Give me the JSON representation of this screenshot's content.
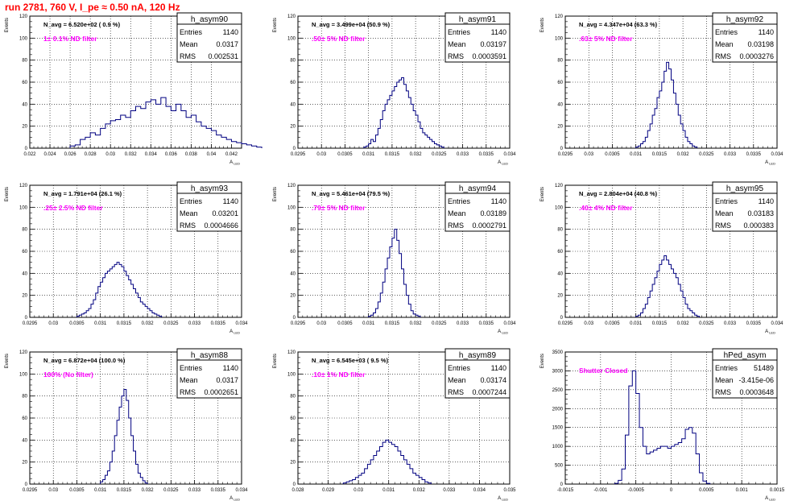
{
  "run_title": "run 2781,   760 V, I_pe ≈ 0.50 nA, 120 Hz",
  "colors": {
    "title": "#ff0000",
    "annotation": "#ff00ff",
    "histogram": "#000080",
    "grid": "#000000"
  },
  "chart_data": [
    {
      "type": "bar",
      "name": "h_asym90",
      "ylabel": "Events",
      "xlabel": "A_LED",
      "xlim": [
        0.022,
        0.043
      ],
      "ylim": [
        0,
        120
      ],
      "xticks": [
        0.022,
        0.024,
        0.026,
        0.028,
        0.03,
        0.032,
        0.034,
        0.036,
        0.038,
        0.04,
        0.042
      ],
      "xtick_labels": [
        "0.022",
        "0.024",
        "0.026",
        "0.028",
        "0.03",
        "0.032",
        "0.034",
        "0.036",
        "0.038",
        "0.04",
        "0.042"
      ],
      "yticks": [
        0,
        20,
        40,
        60,
        80,
        100,
        120
      ],
      "navg": "N_avg = 6.520e+02 ( 0.9 %)",
      "filter": "1± 0.1% ND filter",
      "stats": {
        "entries": "1140",
        "mean": "0.0317",
        "rms": "0.002531"
      },
      "hist": {
        "x0": 0.026,
        "width": 0.0005,
        "values": [
          2,
          3,
          8,
          10,
          14,
          12,
          18,
          22,
          25,
          26,
          30,
          28,
          34,
          38,
          36,
          42,
          44,
          40,
          46,
          38,
          34,
          40,
          34,
          28,
          30,
          24,
          20,
          18,
          16,
          12,
          10,
          8,
          6,
          5,
          4,
          3,
          2,
          1
        ]
      }
    },
    {
      "type": "bar",
      "name": "h_asym91",
      "ylabel": "Events",
      "xlabel": "A_LED",
      "xlim": [
        0.0295,
        0.034
      ],
      "ylim": [
        0,
        120
      ],
      "xticks": [
        0.0295,
        0.03,
        0.0305,
        0.031,
        0.0315,
        0.032,
        0.0325,
        0.033,
        0.0335,
        0.034
      ],
      "xtick_labels": [
        "0.0295",
        "0.03",
        "0.0305",
        "0.031",
        "0.0315",
        "0.032",
        "0.0325",
        "0.033",
        "0.0335",
        "0.034"
      ],
      "yticks": [
        0,
        20,
        40,
        60,
        80,
        100,
        120
      ],
      "navg": "N_avg = 3.499e+04 (50.9 %)",
      "filter": ".50± 5% ND filter",
      "stats": {
        "entries": "1140",
        "mean": "0.03197",
        "rms": "0.0003591"
      },
      "hist": {
        "x0": 0.0309,
        "width": 5e-05,
        "values": [
          1,
          2,
          4,
          8,
          6,
          12,
          18,
          26,
          34,
          40,
          44,
          48,
          52,
          56,
          60,
          62,
          64,
          58,
          52,
          46,
          40,
          34,
          30,
          24,
          18,
          14,
          12,
          10,
          8,
          6,
          4,
          3,
          2,
          1
        ]
      }
    },
    {
      "type": "bar",
      "name": "h_asym92",
      "ylabel": "Events",
      "xlabel": "A_LED",
      "xlim": [
        0.0295,
        0.034
      ],
      "ylim": [
        0,
        120
      ],
      "xticks": [
        0.0295,
        0.03,
        0.0305,
        0.031,
        0.0315,
        0.032,
        0.0325,
        0.033,
        0.0335,
        0.034
      ],
      "xtick_labels": [
        "0.0295",
        "0.03",
        "0.0305",
        "0.031",
        "0.0315",
        "0.032",
        "0.0325",
        "0.033",
        "0.0335",
        "0.034"
      ],
      "yticks": [
        0,
        20,
        40,
        60,
        80,
        100,
        120
      ],
      "navg": "N_avg = 4.347e+04 (63.3 %)",
      "filter": ".63± 5% ND filter",
      "stats": {
        "entries": "1140",
        "mean": "0.03198",
        "rms": "0.0003276"
      },
      "hist": {
        "x0": 0.031,
        "width": 5e-05,
        "values": [
          1,
          2,
          4,
          6,
          10,
          16,
          22,
          30,
          36,
          46,
          52,
          60,
          70,
          78,
          72,
          62,
          50,
          40,
          30,
          22,
          16,
          10,
          6,
          4,
          2,
          1
        ]
      }
    },
    {
      "type": "bar",
      "name": "h_asym93",
      "ylabel": "Events",
      "xlabel": "A_LED",
      "xlim": [
        0.0295,
        0.034
      ],
      "ylim": [
        0,
        120
      ],
      "xticks": [
        0.0295,
        0.03,
        0.0305,
        0.031,
        0.0315,
        0.032,
        0.0325,
        0.033,
        0.0335,
        0.034
      ],
      "xtick_labels": [
        "0.0295",
        "0.03",
        "0.0305",
        "0.031",
        "0.0315",
        "0.032",
        "0.0325",
        "0.033",
        "0.0335",
        "0.034"
      ],
      "yticks": [
        0,
        20,
        40,
        60,
        80,
        100,
        120
      ],
      "navg": "N_avg = 1.791e+04 (26.1 %)",
      "filter": ".25± 2.5% ND filter",
      "stats": {
        "entries": "1140",
        "mean": "0.03201",
        "rms": "0.0004666"
      },
      "hist": {
        "x0": 0.0305,
        "width": 5e-05,
        "values": [
          1,
          2,
          3,
          4,
          6,
          8,
          12,
          16,
          22,
          28,
          32,
          36,
          40,
          42,
          44,
          46,
          48,
          50,
          48,
          46,
          42,
          38,
          34,
          30,
          26,
          22,
          18,
          14,
          12,
          10,
          8,
          6,
          4,
          3,
          2,
          1
        ]
      }
    },
    {
      "type": "bar",
      "name": "h_asym94",
      "ylabel": "Events",
      "xlabel": "A_LED",
      "xlim": [
        0.0295,
        0.034
      ],
      "ylim": [
        0,
        120
      ],
      "xticks": [
        0.0295,
        0.03,
        0.0305,
        0.031,
        0.0315,
        0.032,
        0.0325,
        0.033,
        0.0335,
        0.034
      ],
      "xtick_labels": [
        "0.0295",
        "0.03",
        "0.0305",
        "0.031",
        "0.0315",
        "0.032",
        "0.0325",
        "0.033",
        "0.0335",
        "0.034"
      ],
      "yticks": [
        0,
        20,
        40,
        60,
        80,
        100,
        120
      ],
      "navg": "N_avg = 5.461e+04 (79.5 %)",
      "filter": ".79± 5% ND filter",
      "stats": {
        "entries": "1140",
        "mean": "0.03189",
        "rms": "0.0002791"
      },
      "hist": {
        "x0": 0.031,
        "width": 5e-05,
        "values": [
          1,
          2,
          4,
          8,
          14,
          22,
          32,
          44,
          54,
          64,
          72,
          80,
          70,
          58,
          44,
          30,
          20,
          12,
          6,
          3,
          2,
          1
        ]
      }
    },
    {
      "type": "bar",
      "name": "h_asym95",
      "ylabel": "Events",
      "xlabel": "A_LED",
      "xlim": [
        0.0295,
        0.034
      ],
      "ylim": [
        0,
        120
      ],
      "xticks": [
        0.0295,
        0.03,
        0.0305,
        0.031,
        0.0315,
        0.032,
        0.0325,
        0.033,
        0.0335,
        0.034
      ],
      "xtick_labels": [
        "0.0295",
        "0.03",
        "0.0305",
        "0.031",
        "0.0315",
        "0.032",
        "0.0325",
        "0.033",
        "0.0335",
        "0.034"
      ],
      "yticks": [
        0,
        20,
        40,
        60,
        80,
        100,
        120
      ],
      "navg": "N_avg = 2.804e+04 (40.8 %)",
      "filter": ".40± 4% ND filter",
      "stats": {
        "entries": "1140",
        "mean": "0.03183",
        "rms": "0.000383"
      },
      "hist": {
        "x0": 0.031,
        "width": 5e-05,
        "values": [
          1,
          2,
          4,
          8,
          12,
          18,
          24,
          30,
          36,
          42,
          48,
          52,
          56,
          52,
          48,
          44,
          40,
          36,
          30,
          24,
          18,
          12,
          8,
          6,
          4,
          2,
          1
        ]
      }
    },
    {
      "type": "bar",
      "name": "h_asym88",
      "ylabel": "Events",
      "xlabel": "A_LED",
      "xlim": [
        0.0295,
        0.034
      ],
      "ylim": [
        0,
        120
      ],
      "xticks": [
        0.0295,
        0.03,
        0.0305,
        0.031,
        0.0315,
        0.032,
        0.0325,
        0.033,
        0.0335,
        0.034
      ],
      "xtick_labels": [
        "0.0295",
        "0.03",
        "0.0305",
        "0.031",
        "0.0315",
        "0.032",
        "0.0325",
        "0.033",
        "0.0335",
        "0.034"
      ],
      "yticks": [
        0,
        20,
        40,
        60,
        80,
        100,
        120
      ],
      "navg": "N_avg = 6.872e+04 (100.0 %)",
      "filter": "100% (No filter)",
      "stats": {
        "entries": "1140",
        "mean": "0.0317",
        "rms": "0.0002651"
      },
      "hist": {
        "x0": 0.031,
        "width": 5e-05,
        "values": [
          2,
          4,
          8,
          12,
          20,
          30,
          44,
          58,
          70,
          80,
          86,
          76,
          60,
          44,
          30,
          18,
          10,
          6,
          3,
          1
        ]
      }
    },
    {
      "type": "bar",
      "name": "h_asym89",
      "ylabel": "Events",
      "xlabel": "A_LED",
      "xlim": [
        0.028,
        0.035
      ],
      "ylim": [
        0,
        120
      ],
      "xticks": [
        0.028,
        0.029,
        0.03,
        0.031,
        0.032,
        0.033,
        0.034,
        0.035
      ],
      "xtick_labels": [
        "0.028",
        "0.029",
        "0.03",
        "0.031",
        "0.032",
        "0.033",
        "0.034",
        "0.035"
      ],
      "yticks": [
        0,
        20,
        40,
        60,
        80,
        100,
        120
      ],
      "navg": "N_avg = 6.545e+03 ( 9.5 %)",
      "filter": ".10± 1% ND filter",
      "stats": {
        "entries": "1140",
        "mean": "0.03174",
        "rms": "0.0007244"
      },
      "hist": {
        "x0": 0.0295,
        "width": 0.0001,
        "values": [
          1,
          2,
          3,
          4,
          6,
          8,
          10,
          14,
          18,
          22,
          26,
          30,
          34,
          38,
          40,
          38,
          36,
          34,
          30,
          26,
          22,
          18,
          14,
          10,
          8,
          6,
          4,
          2,
          1
        ]
      }
    },
    {
      "type": "bar",
      "name": "hPed_asym",
      "ylabel": "Events",
      "xlabel": "A_LED",
      "xlim": [
        -0.0015,
        0.0015
      ],
      "ylim": [
        0,
        3500
      ],
      "xticks": [
        -0.0015,
        -0.001,
        -0.0005,
        0,
        0.0005,
        0.001,
        0.0015
      ],
      "xtick_labels": [
        "-0.0015",
        "-0.001",
        "-0.0005",
        "0",
        "0.0005",
        "0.001",
        "0.0015"
      ],
      "yticks": [
        0,
        500,
        1000,
        1500,
        2000,
        2500,
        3000,
        3500
      ],
      "navg": "",
      "filter": "Shutter Closed",
      "stats": {
        "entries": "51489",
        "mean": "-3.415e-06",
        "rms": "0.0003648"
      },
      "hist": {
        "x0": -0.0008,
        "width": 5e-05,
        "values": [
          20,
          100,
          400,
          1300,
          2600,
          3000,
          2400,
          1500,
          1000,
          800,
          850,
          900,
          950,
          1000,
          1000,
          950,
          1000,
          1050,
          1100,
          1200,
          1450,
          1500,
          1350,
          800,
          300,
          80,
          20
        ]
      }
    }
  ]
}
